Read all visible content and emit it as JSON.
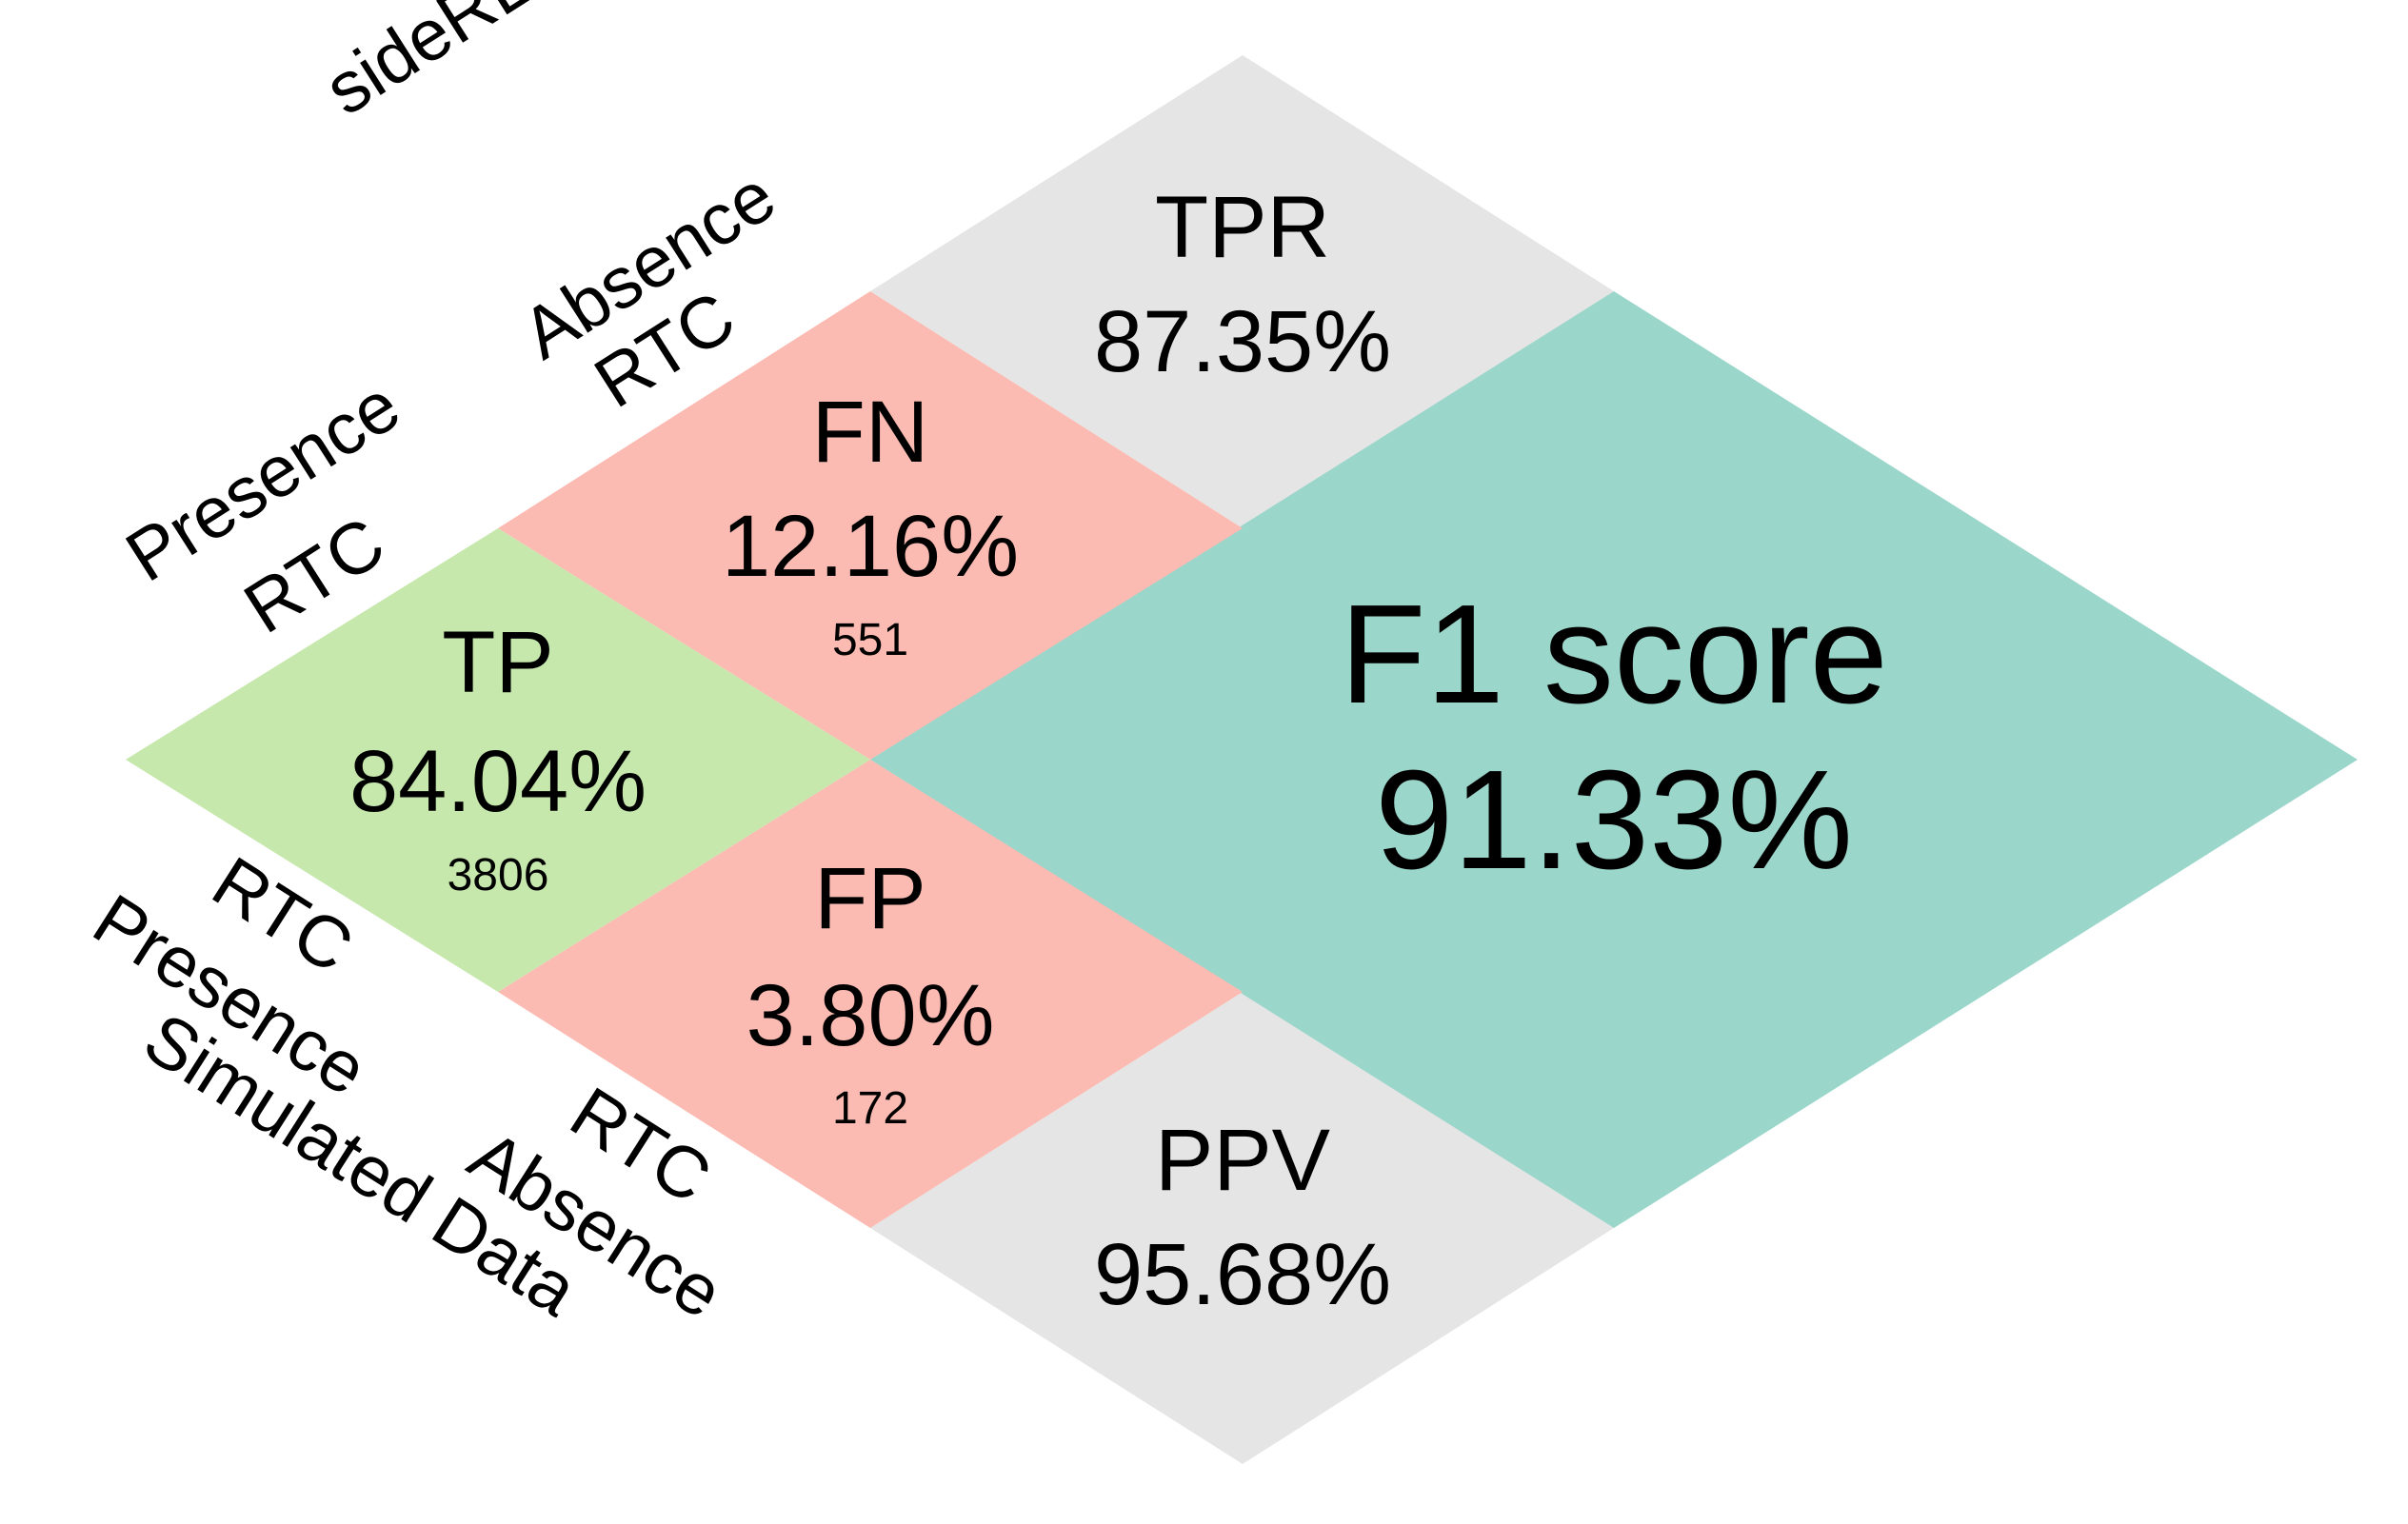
{
  "colors": {
    "tp": "#c6e8ac",
    "fn_fp": "#fcbbb2",
    "rate": "#e5e5e5",
    "f1": "#9bd6cb"
  },
  "cells": {
    "tp": {
      "title": "TP",
      "percent": "84.04%",
      "count": "3806"
    },
    "fn": {
      "title": "FN",
      "percent": "12.16%",
      "count": "551"
    },
    "fp": {
      "title": "FP",
      "percent": "3.80%",
      "count": "172"
    },
    "tpr": {
      "title": "TPR",
      "percent": "87.35%"
    },
    "ppv": {
      "title": "PPV",
      "percent": "95.68%"
    },
    "f1": {
      "title": "F1 score",
      "percent": "91.33%"
    }
  },
  "axes": {
    "top": {
      "name": "sideRETRO",
      "presence": "Presence",
      "absence": "Absence",
      "rtc": "RTC"
    },
    "bottom": {
      "name": "Simulated Data",
      "presence": "Presence",
      "absence": "Absence",
      "rtc": "RTC"
    }
  }
}
